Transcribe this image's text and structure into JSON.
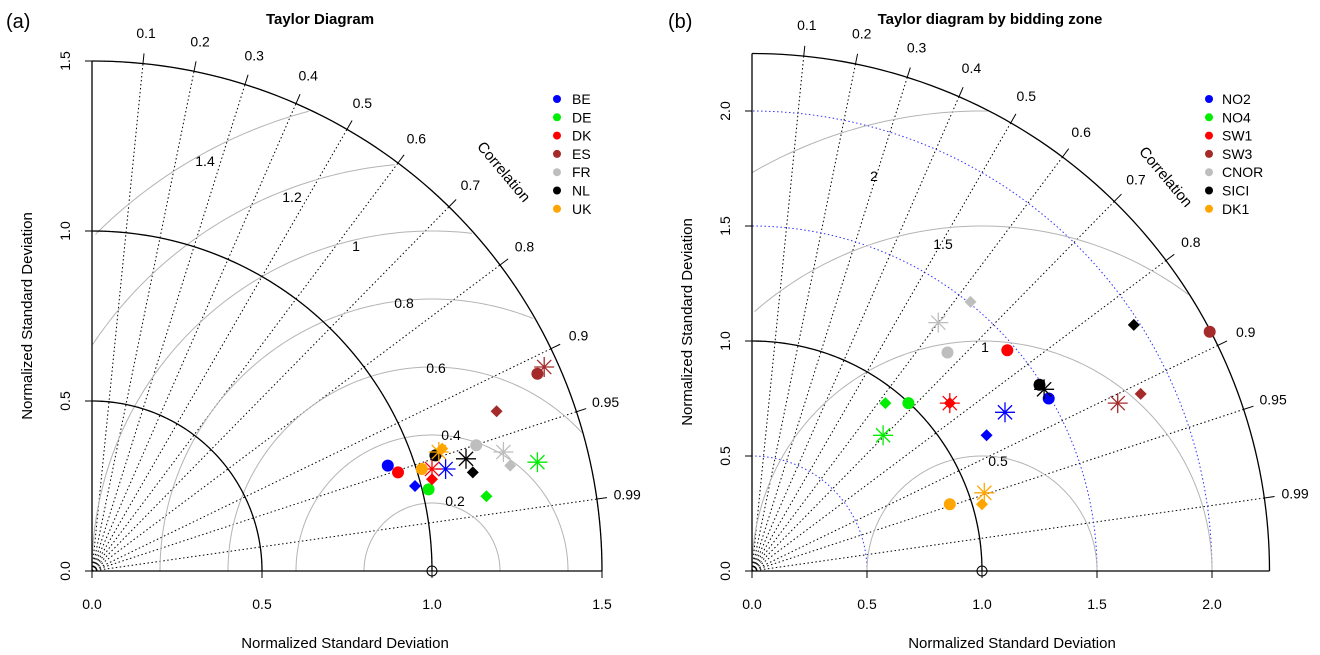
{
  "chart_data": [
    {
      "type": "scatter",
      "subtype": "taylor-diagram",
      "panel_tag": "(a)",
      "title": "Taylor Diagram",
      "xlabel": "Normalized Standard Deviation",
      "ylabel": "Normalized Standard Deviation",
      "corr_label": "Correlation",
      "max_sd": 1.5,
      "xticks": [
        "0.0",
        "0.5",
        "1.0",
        "1.5"
      ],
      "yticks": [
        "0.0",
        "0.5",
        "1.0",
        "1.5"
      ],
      "corr_ticks": [
        "0.1",
        "0.2",
        "0.3",
        "0.4",
        "0.5",
        "0.6",
        "0.7",
        "0.8",
        "0.9",
        "0.95",
        "0.99"
      ],
      "rms_labels": [
        "0.2",
        "0.4",
        "0.6",
        "0.8",
        "1",
        "1.2",
        "1.4"
      ],
      "legend": [
        {
          "name": "BE",
          "color": "#0000ff"
        },
        {
          "name": "DE",
          "color": "#00ee00"
        },
        {
          "name": "DK",
          "color": "#ff0000"
        },
        {
          "name": "ES",
          "color": "#a52a2a"
        },
        {
          "name": "FR",
          "color": "#bebebe"
        },
        {
          "name": "NL",
          "color": "#000000"
        },
        {
          "name": "UK",
          "color": "#ffa500"
        }
      ],
      "points": [
        {
          "series": "BE",
          "marker": "circle",
          "x": 0.87,
          "y": 0.31
        },
        {
          "series": "BE",
          "marker": "diamond",
          "x": 0.95,
          "y": 0.25
        },
        {
          "series": "BE",
          "marker": "asterisk",
          "x": 1.04,
          "y": 0.3
        },
        {
          "series": "DE",
          "marker": "circle",
          "x": 0.99,
          "y": 0.24
        },
        {
          "series": "DE",
          "marker": "diamond",
          "x": 1.16,
          "y": 0.22
        },
        {
          "series": "DE",
          "marker": "asterisk",
          "x": 1.31,
          "y": 0.32
        },
        {
          "series": "DK",
          "marker": "circle",
          "x": 0.9,
          "y": 0.29
        },
        {
          "series": "DK",
          "marker": "diamond",
          "x": 1.0,
          "y": 0.27
        },
        {
          "series": "DK",
          "marker": "asterisk",
          "x": 1.0,
          "y": 0.3
        },
        {
          "series": "ES",
          "marker": "circle",
          "x": 1.31,
          "y": 0.58
        },
        {
          "series": "ES",
          "marker": "diamond",
          "x": 1.19,
          "y": 0.47
        },
        {
          "series": "ES",
          "marker": "asterisk",
          "x": 1.33,
          "y": 0.6
        },
        {
          "series": "FR",
          "marker": "circle",
          "x": 1.13,
          "y": 0.37
        },
        {
          "series": "FR",
          "marker": "diamond",
          "x": 1.23,
          "y": 0.31
        },
        {
          "series": "FR",
          "marker": "asterisk",
          "x": 1.21,
          "y": 0.35
        },
        {
          "series": "NL",
          "marker": "circle",
          "x": 1.01,
          "y": 0.34
        },
        {
          "series": "NL",
          "marker": "diamond",
          "x": 1.12,
          "y": 0.29
        },
        {
          "series": "NL",
          "marker": "asterisk",
          "x": 1.1,
          "y": 0.33
        },
        {
          "series": "UK",
          "marker": "circle",
          "x": 0.97,
          "y": 0.3
        },
        {
          "series": "UK",
          "marker": "diamond",
          "x": 1.03,
          "y": 0.36
        },
        {
          "series": "UK",
          "marker": "asterisk",
          "x": 1.02,
          "y": 0.35
        }
      ]
    },
    {
      "type": "scatter",
      "subtype": "taylor-diagram",
      "panel_tag": "(b)",
      "title": "Taylor diagram by bidding zone",
      "xlabel": "Normalized Standard Deviation",
      "ylabel": "Normalized Standard Deviation",
      "corr_label": "Correlation",
      "max_sd": 2.25,
      "xticks": [
        "0.0",
        "0.5",
        "1.0",
        "1.5",
        "2.0"
      ],
      "yticks": [
        "0.0",
        "0.5",
        "1.0",
        "1.5",
        "2.0"
      ],
      "corr_ticks": [
        "0.1",
        "0.2",
        "0.3",
        "0.4",
        "0.5",
        "0.6",
        "0.7",
        "0.8",
        "0.9",
        "0.95",
        "0.99"
      ],
      "rms_labels": [
        "0.5",
        "1",
        "1.5",
        "2"
      ],
      "legend": [
        {
          "name": "NO2",
          "color": "#0000ff"
        },
        {
          "name": "NO4",
          "color": "#00ee00"
        },
        {
          "name": "SW1",
          "color": "#ff0000"
        },
        {
          "name": "SW3",
          "color": "#a52a2a"
        },
        {
          "name": "CNOR",
          "color": "#bebebe"
        },
        {
          "name": "SICI",
          "color": "#000000"
        },
        {
          "name": "DK1",
          "color": "#ffa500"
        }
      ],
      "points": [
        {
          "series": "NO2",
          "marker": "circle",
          "x": 1.29,
          "y": 0.75
        },
        {
          "series": "NO2",
          "marker": "diamond",
          "x": 1.02,
          "y": 0.59
        },
        {
          "series": "NO2",
          "marker": "asterisk",
          "x": 1.1,
          "y": 0.69
        },
        {
          "series": "NO4",
          "marker": "circle",
          "x": 0.68,
          "y": 0.73
        },
        {
          "series": "NO4",
          "marker": "diamond",
          "x": 0.58,
          "y": 0.73
        },
        {
          "series": "NO4",
          "marker": "asterisk",
          "x": 0.57,
          "y": 0.59
        },
        {
          "series": "SW1",
          "marker": "circle",
          "x": 1.11,
          "y": 0.96
        },
        {
          "series": "SW1",
          "marker": "diamond",
          "x": 0.86,
          "y": 0.73
        },
        {
          "series": "SW1",
          "marker": "asterisk",
          "x": 0.86,
          "y": 0.73
        },
        {
          "series": "SW3",
          "marker": "circle",
          "x": 1.99,
          "y": 1.04
        },
        {
          "series": "SW3",
          "marker": "diamond",
          "x": 1.69,
          "y": 0.77
        },
        {
          "series": "SW3",
          "marker": "asterisk",
          "x": 1.59,
          "y": 0.73
        },
        {
          "series": "CNOR",
          "marker": "circle",
          "x": 0.85,
          "y": 0.95
        },
        {
          "series": "CNOR",
          "marker": "diamond",
          "x": 0.95,
          "y": 1.17
        },
        {
          "series": "CNOR",
          "marker": "asterisk",
          "x": 0.81,
          "y": 1.08
        },
        {
          "series": "SICI",
          "marker": "circle",
          "x": 1.25,
          "y": 0.81
        },
        {
          "series": "SICI",
          "marker": "diamond",
          "x": 1.66,
          "y": 1.07
        },
        {
          "series": "SICI",
          "marker": "asterisk",
          "x": 1.27,
          "y": 0.79
        },
        {
          "series": "DK1",
          "marker": "circle",
          "x": 0.86,
          "y": 0.29
        },
        {
          "series": "DK1",
          "marker": "diamond",
          "x": 1.0,
          "y": 0.29
        },
        {
          "series": "DK1",
          "marker": "asterisk",
          "x": 1.01,
          "y": 0.34
        }
      ]
    }
  ]
}
